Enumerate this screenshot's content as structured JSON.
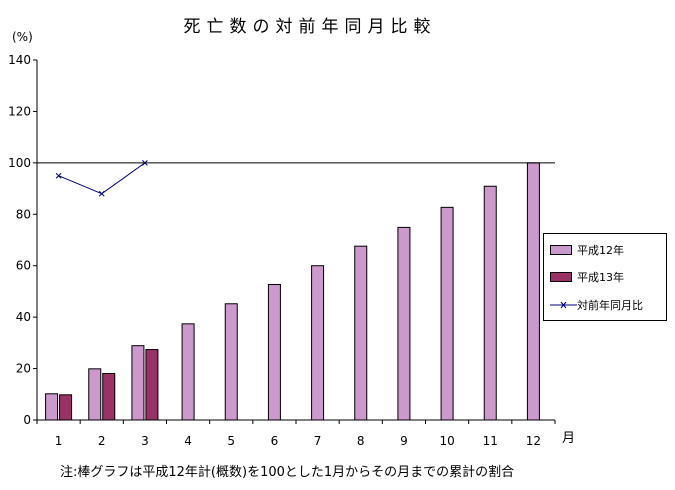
{
  "chart_data": {
    "type": "bar",
    "title": "死亡数の対前年同月比較",
    "ylabel": "(%)",
    "xlabel": "月",
    "categories": [
      "1",
      "2",
      "3",
      "4",
      "5",
      "6",
      "7",
      "8",
      "9",
      "10",
      "11",
      "12"
    ],
    "ylim": [
      0,
      140
    ],
    "yticks": [
      0,
      20,
      40,
      60,
      80,
      100,
      120,
      140
    ],
    "reference_line": 100,
    "legend_position": "right",
    "series": [
      {
        "name": "平成12年",
        "type": "bar",
        "color": "#cc99cc",
        "values": [
          10.2,
          19.9,
          28.9,
          37.4,
          45.2,
          52.7,
          60.0,
          67.6,
          74.9,
          82.7,
          90.9,
          100.0
        ]
      },
      {
        "name": "平成13年",
        "type": "bar",
        "color": "#993366",
        "values": [
          9.8,
          18.1,
          27.4,
          null,
          null,
          null,
          null,
          null,
          null,
          null,
          null,
          null
        ]
      },
      {
        "name": "対前年同月比",
        "type": "line",
        "color": "#000080",
        "values": [
          95,
          88,
          100,
          null,
          null,
          null,
          null,
          null,
          null,
          null,
          null,
          null
        ]
      }
    ],
    "note": "注:棒グラフは平成12年計(概数)を100とした1月からその月までの累計の割合"
  }
}
